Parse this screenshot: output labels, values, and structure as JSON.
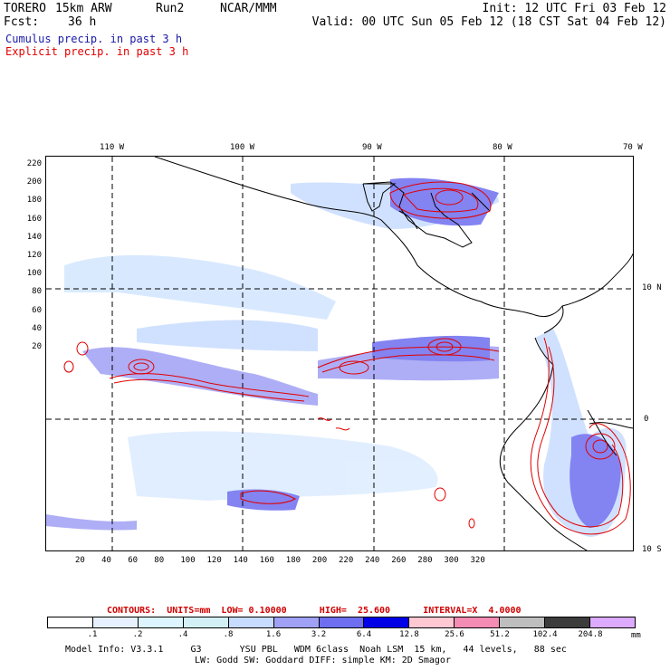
{
  "header": {
    "model": "TORERO",
    "resolution": "15km ARW",
    "run": "Run2",
    "org": "NCAR/MMM",
    "init": "Init: 12 UTC Fri 03 Feb 12",
    "fcst_label": "Fcst:",
    "fcst_value": "36 h",
    "valid": "Valid: 00 UTC Sun 05 Feb 12 (18 CST Sat 04 Feb 12)"
  },
  "legend_lines": {
    "cumulus": "Cumulus precip. in past 3 h",
    "explicit": "Explicit precip. in past 3 h"
  },
  "colors": {
    "cumulus_text": "#1a1aa6",
    "explicit_text": "#e00000",
    "contour": "#e00000",
    "coast": "#000000"
  },
  "map": {
    "top_lon_labels": [
      "110 W",
      "100 W",
      "90 W",
      "80 W",
      "70 W"
    ],
    "right_lat_labels": [
      "10 N",
      "0",
      "10 S"
    ],
    "y_ticks": [
      "220",
      "200",
      "180",
      "160",
      "140",
      "120",
      "100",
      "80",
      "60",
      "40",
      "20"
    ],
    "x_ticks": [
      "20",
      "40",
      "60",
      "80",
      "100",
      "120",
      "140",
      "160",
      "180",
      "200",
      "220",
      "240",
      "260",
      "280",
      "300",
      "320"
    ]
  },
  "contours_line": "CONTOURS:  UNITS=mm  LOW= 0.10000      HIGH=  25.600      INTERVAL=X  4.0000",
  "colorbar": {
    "labels": [
      ".1",
      ".2",
      ".4",
      ".8",
      "1.6",
      "3.2",
      "6.4",
      "12.8",
      "25.6",
      "51.2",
      "102.4",
      "204.8"
    ],
    "unit": "mm",
    "colors": [
      "#ffffff",
      "#e6f0ff",
      "#dcf5ff",
      "#d2f0f5",
      "#c8dcff",
      "#a0a0f5",
      "#6e6ef0",
      "#0000e6",
      "#ffc8d2",
      "#f58cb4",
      "#bebebe",
      "#3c3c3c",
      "#dcaaff"
    ]
  },
  "footer": {
    "line1": "Model Info: V3.3.1     G3       YSU PBL   WDM 6class  Noah LSM  15 km,   44 levels,   88 sec",
    "line2": "LW: Godd SW: Goddard DIFF: simple KM: 2D Smagor"
  }
}
